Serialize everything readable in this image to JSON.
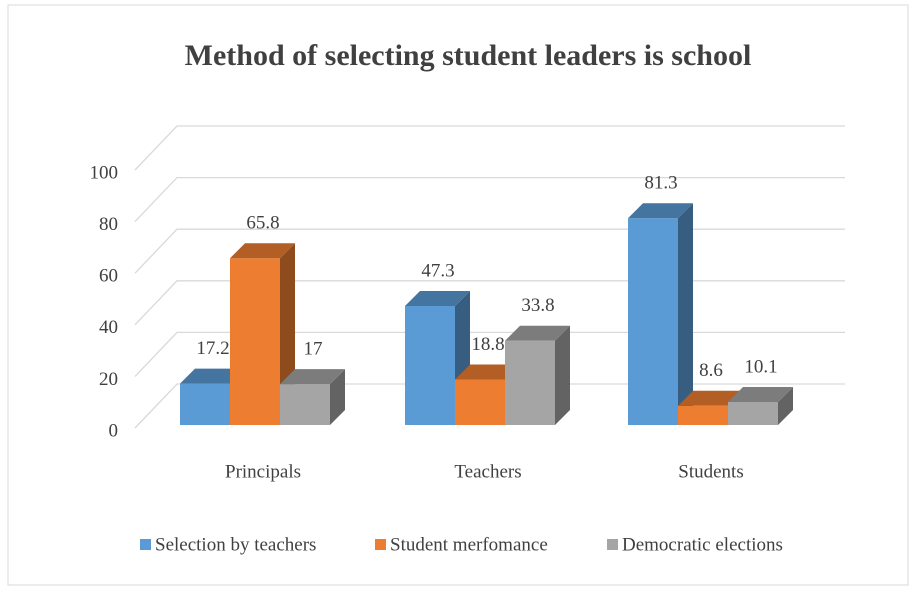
{
  "chart_data": {
    "type": "bar3d",
    "title": "Method of selecting student leaders is school",
    "categories": [
      "Principals",
      "Teachers",
      "Students"
    ],
    "series": [
      {
        "name": "Selection by teachers",
        "color": "#5b9bd5",
        "values": [
          17.2,
          47.3,
          81.3
        ]
      },
      {
        "name": "Student merfomance",
        "color": "#ed7d31",
        "values": [
          65.8,
          18.8,
          8.6
        ]
      },
      {
        "name": "Democratic elections",
        "color": "#a5a5a5",
        "values": [
          17,
          33.8,
          10.1
        ]
      }
    ],
    "ylim": [
      0,
      100
    ],
    "yticks": [
      0,
      20,
      40,
      60,
      80,
      100
    ],
    "grid": true,
    "legend": "bottom"
  }
}
